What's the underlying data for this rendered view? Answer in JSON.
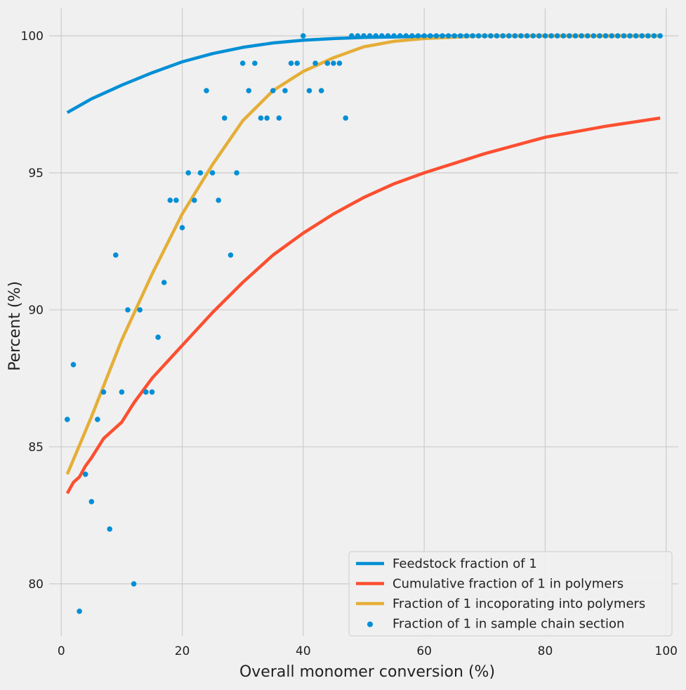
{
  "chart_data": {
    "type": "line",
    "title": "",
    "xlabel": "Overall monomer conversion (%)",
    "ylabel": "Percent (%)",
    "xlim": [
      -2,
      102
    ],
    "ylim": [
      78.1,
      101.0
    ],
    "xticks": [
      0,
      20,
      40,
      60,
      80,
      100
    ],
    "yticks": [
      80,
      85,
      90,
      95,
      100
    ],
    "grid": true,
    "legend_position": "bottom-right",
    "series": [
      {
        "name": "Feedstock fraction of 1",
        "kind": "line",
        "color": "#008fd5",
        "x": [
          1,
          5,
          10,
          15,
          20,
          25,
          30,
          35,
          40,
          45,
          50,
          55,
          60,
          65,
          70,
          80,
          90,
          99
        ],
        "y": [
          97.2,
          97.7,
          98.2,
          98.65,
          99.05,
          99.35,
          99.58,
          99.74,
          99.84,
          99.9,
          99.94,
          99.96,
          99.98,
          99.99,
          100.0,
          100.0,
          100.0,
          100.0
        ]
      },
      {
        "name": "Cumulative fraction of 1 in polymers",
        "kind": "line",
        "color": "#fc4f30",
        "x": [
          1,
          2,
          3,
          4,
          5,
          7,
          9,
          10,
          12,
          15,
          20,
          25,
          30,
          35,
          40,
          45,
          50,
          55,
          60,
          70,
          80,
          90,
          99
        ],
        "y": [
          83.3,
          83.7,
          83.9,
          84.3,
          84.6,
          85.3,
          85.7,
          85.9,
          86.6,
          87.5,
          88.7,
          89.9,
          91.0,
          92.0,
          92.8,
          93.5,
          94.1,
          94.6,
          95.0,
          95.7,
          96.3,
          96.7,
          97.0
        ]
      },
      {
        "name": "Fraction of 1 incoporating into polymers",
        "kind": "line",
        "color": "#e5ae38",
        "x": [
          1,
          5,
          10,
          15,
          20,
          25,
          30,
          35,
          40,
          45,
          50,
          55,
          60,
          65,
          70,
          80,
          90,
          99
        ],
        "y": [
          84.0,
          86.1,
          88.9,
          91.3,
          93.5,
          95.3,
          96.9,
          98.0,
          98.7,
          99.2,
          99.6,
          99.8,
          99.9,
          99.95,
          100.0,
          100.0,
          100.0,
          100.0
        ]
      },
      {
        "name": "Fraction of 1 in sample chain section",
        "kind": "scatter",
        "color": "#008fd5",
        "x": [
          1,
          2,
          3,
          4,
          5,
          6,
          7,
          8,
          9,
          10,
          11,
          12,
          13,
          14,
          15,
          16,
          17,
          18,
          19,
          20,
          21,
          22,
          23,
          24,
          25,
          26,
          27,
          28,
          29,
          30,
          31,
          32,
          33,
          34,
          35,
          36,
          37,
          38,
          39,
          40,
          41,
          42,
          43,
          44,
          45,
          46,
          47,
          48,
          49,
          50,
          51,
          52,
          53,
          54,
          55,
          56,
          57,
          58,
          59,
          60,
          61,
          62,
          63,
          64,
          65,
          66,
          67,
          68,
          69,
          70,
          71,
          72,
          73,
          74,
          75,
          76,
          77,
          78,
          79,
          80,
          81,
          82,
          83,
          84,
          85,
          86,
          87,
          88,
          89,
          90,
          91,
          92,
          93,
          94,
          95,
          96,
          97,
          98,
          99
        ],
        "y": [
          86,
          88,
          79,
          84,
          83,
          86,
          87,
          82,
          92,
          87,
          90,
          80,
          90,
          87,
          87,
          89,
          91,
          94,
          94,
          93,
          95,
          94,
          95,
          98,
          95,
          94,
          97,
          92,
          95,
          99,
          98,
          99,
          97,
          97,
          98,
          97,
          98,
          99,
          99,
          100,
          98,
          99,
          98,
          99,
          99,
          99,
          97,
          100,
          100,
          100,
          100,
          100,
          100,
          100,
          100,
          100,
          100,
          100,
          100,
          100,
          100,
          100,
          100,
          100,
          100,
          100,
          100,
          100,
          100,
          100,
          100,
          100,
          100,
          100,
          100,
          100,
          100,
          100,
          100,
          100,
          100,
          100,
          100,
          100,
          100,
          100,
          100,
          100,
          100,
          100,
          100,
          100,
          100,
          100,
          100,
          100,
          100,
          100,
          100
        ]
      }
    ]
  },
  "colors": {
    "background": "#f0f0f0",
    "grid": "#cbcbcb",
    "legend_border": "#cccccc"
  }
}
